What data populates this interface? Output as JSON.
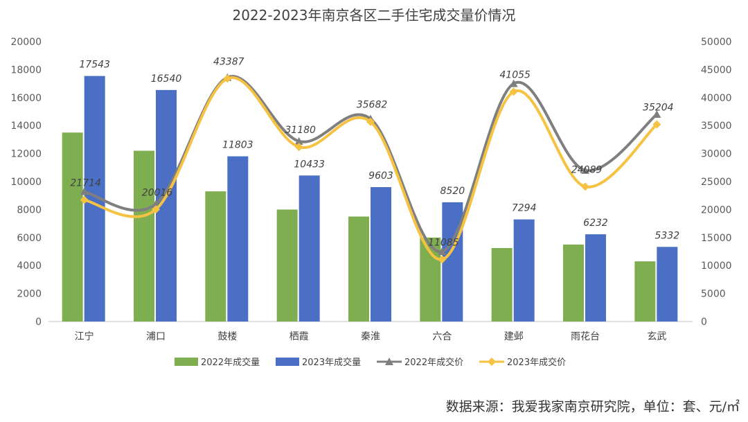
{
  "chart_data": {
    "type": "bar",
    "title": "2022-2023年南京各区二手住宅成交量价情况",
    "categories": [
      "江宁",
      "浦口",
      "鼓楼",
      "栖霞",
      "秦淮",
      "六合",
      "建邺",
      "雨花台",
      "玄武"
    ],
    "bar_series": [
      {
        "name": "2022年成交量",
        "color": "#7fae51",
        "values": [
          13500,
          12200,
          9300,
          8000,
          7500,
          6000,
          5250,
          5500,
          4300
        ],
        "labeled": false
      },
      {
        "name": "2023年成交量",
        "color": "#4a6fc4",
        "values": [
          17543,
          16540,
          11803,
          10433,
          9603,
          8520,
          7294,
          6232,
          5332
        ],
        "labeled": true
      }
    ],
    "line_series": [
      {
        "name": "2022年成交价",
        "color": "#7f7f7f",
        "marker": "triangle",
        "values": [
          23200,
          21000,
          43600,
          32200,
          36200,
          12500,
          42500,
          27000,
          37000
        ],
        "labeled": false
      },
      {
        "name": "2023年成交价",
        "color": "#f5c242",
        "marker": "diamond",
        "values": [
          21714,
          20016,
          43387,
          31180,
          35682,
          11085,
          41055,
          24089,
          35204
        ],
        "labeled": true
      }
    ],
    "y_left": {
      "min": 0,
      "max": 20000,
      "step": 2000
    },
    "y_right": {
      "min": 0,
      "max": 50000,
      "step": 5000
    },
    "legend_position": "bottom"
  },
  "source": "数据来源：我爱我家南京研究院，单位：套、元/㎡"
}
